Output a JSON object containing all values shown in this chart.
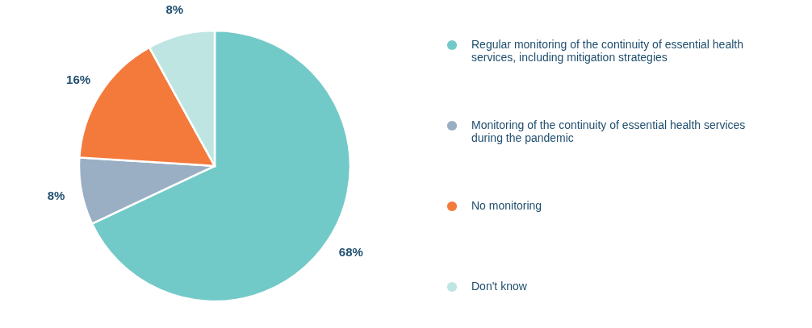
{
  "chart_data": {
    "type": "pie",
    "categories": [
      "Regular monitoring of the continuity of essential health services, including mitigation strategies",
      "Monitoring of the continuity of essential health services during the pandemic",
      "No monitoring",
      "Don't know"
    ],
    "values": [
      68,
      8,
      16,
      8
    ],
    "colors": [
      "#72cac8",
      "#9aafc4",
      "#f47a3c",
      "#bfe5e3"
    ],
    "value_labels": [
      "68%",
      "8%",
      "16%",
      "8%"
    ],
    "legend": "right"
  }
}
